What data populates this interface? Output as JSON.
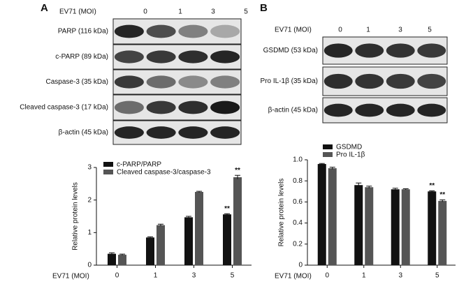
{
  "blots": [
    {
      "label": "A",
      "header": "EV71 (MOI)",
      "lanes": [
        "0",
        "1",
        "3",
        "5"
      ],
      "rows": [
        "PARP (116 kDa)",
        "c-PARP (89 kDa)",
        "Caspase-3 (35 kDa)",
        "Cleaved caspase-3 (17 kDa)",
        "β-actin (45 kDa)"
      ]
    },
    {
      "label": "B",
      "header": "EV71 (MOI)",
      "lanes": [
        "0",
        "1",
        "3",
        "5"
      ],
      "rows": [
        "GSDMD (53 kDa)",
        "Pro IL-1β (35 kDa)",
        "β-actin (45 kDa)"
      ]
    }
  ],
  "chart_data": [
    {
      "type": "bar",
      "y_label": "Relative protein levels",
      "x_label": "EV71 (MOI)",
      "categories": [
        "0",
        "1",
        "3",
        "5"
      ],
      "ylim": [
        0,
        3
      ],
      "yticks": [
        0,
        1,
        2,
        3
      ],
      "legend": "top-left",
      "series": [
        {
          "name": "c-PARP/PARP",
          "color": "#111111",
          "values": [
            0.35,
            0.85,
            1.47,
            1.56
          ],
          "errors": [
            0.03,
            0.02,
            0.03,
            0.02
          ],
          "annotations": [
            null,
            null,
            null,
            "**"
          ]
        },
        {
          "name": "Cleaved caspase-3/caspase-3",
          "color": "#555555",
          "values": [
            0.32,
            1.23,
            2.25,
            2.7
          ],
          "errors": [
            0.02,
            0.03,
            0.02,
            0.06
          ],
          "annotations": [
            null,
            null,
            null,
            "**"
          ]
        }
      ]
    },
    {
      "type": "bar",
      "y_label": "Relative protein levels",
      "x_label": "EV71 (MOI)",
      "categories": [
        "0",
        "1",
        "3",
        "5"
      ],
      "ylim": [
        0,
        1
      ],
      "yticks": [
        0,
        0.2,
        0.4,
        0.6,
        0.8,
        {
          "value": 1,
          "label": "1.0"
        }
      ],
      "legend": "top-left",
      "series": [
        {
          "name": "GSDMD",
          "color": "#111111",
          "values": [
            0.96,
            0.76,
            0.72,
            0.7
          ],
          "errors": [
            0.005,
            0.02,
            0.01,
            0.005
          ],
          "annotations": [
            null,
            null,
            null,
            "**"
          ]
        },
        {
          "name": "Pro IL-1β",
          "color": "#555555",
          "values": [
            0.92,
            0.74,
            0.72,
            0.61
          ],
          "errors": [
            0.01,
            0.01,
            0.005,
            0.01
          ],
          "annotations": [
            null,
            null,
            null,
            "**"
          ]
        }
      ]
    }
  ]
}
